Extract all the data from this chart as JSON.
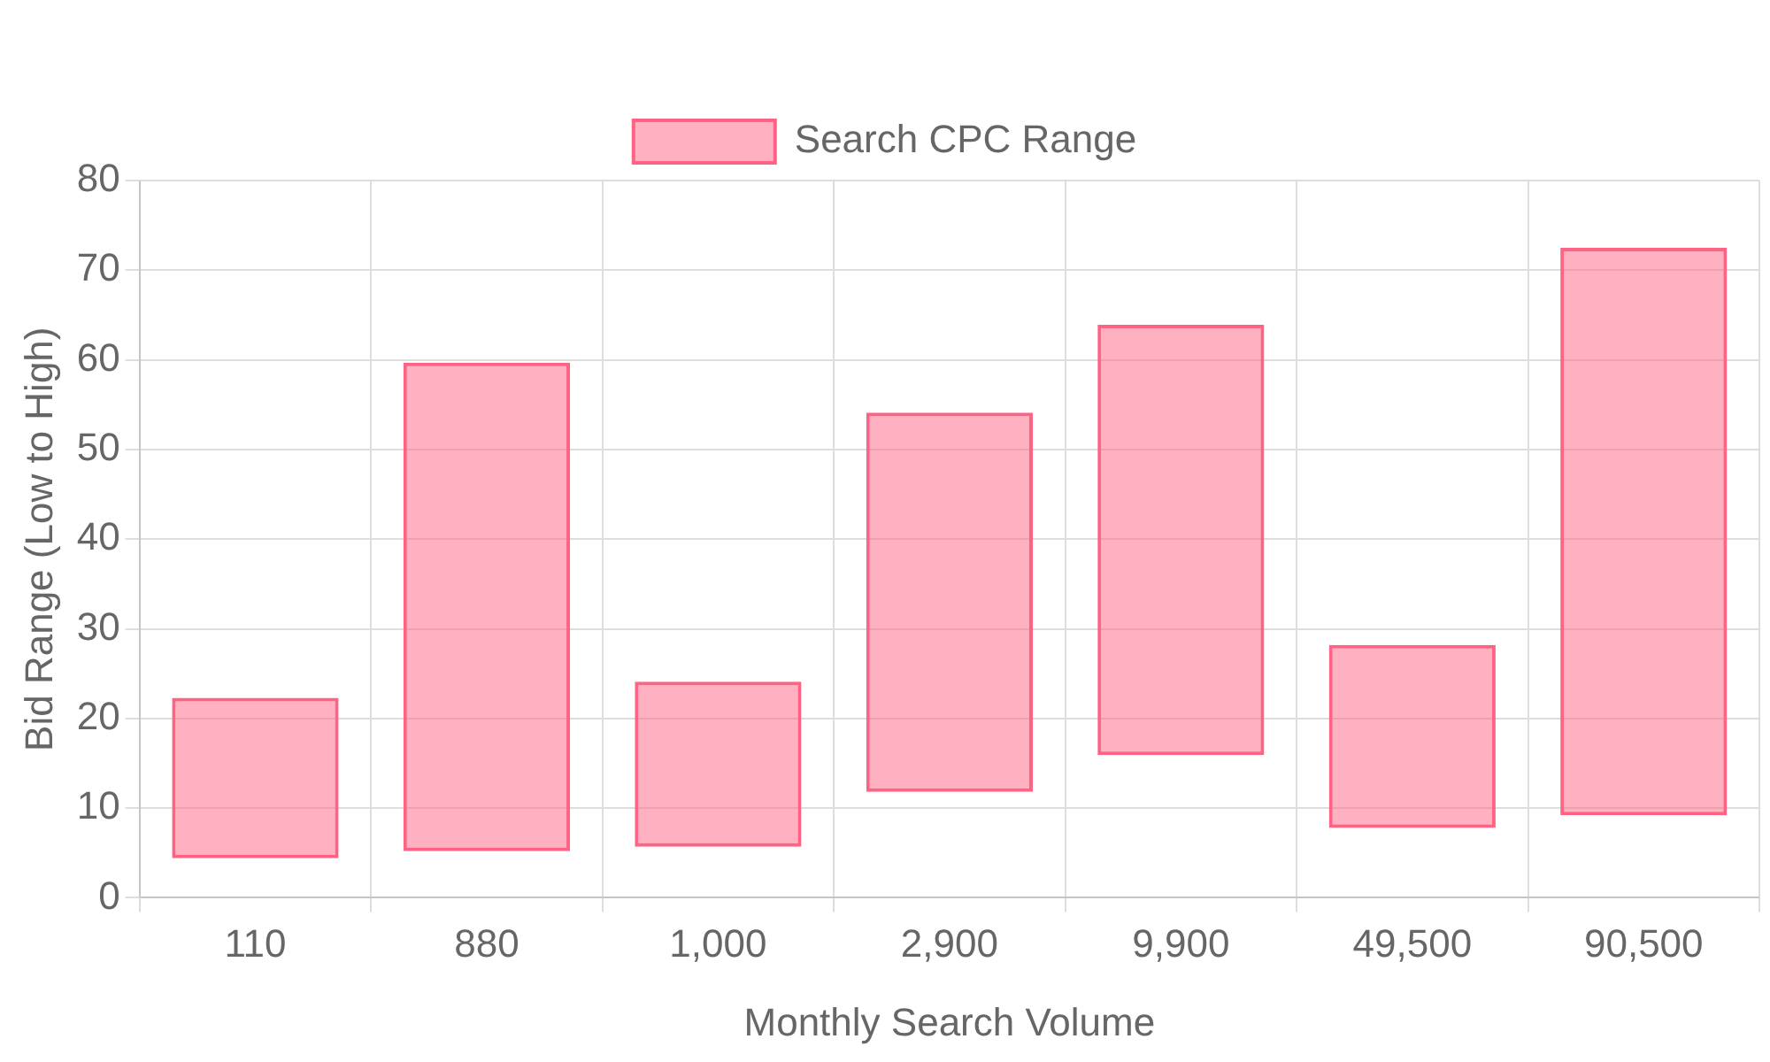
{
  "chart_data": {
    "type": "bar",
    "xlabel": "Monthly Search Volume",
    "ylabel": "Bid Range (Low to High)",
    "categories": [
      "110",
      "880",
      "1,000",
      "2,900",
      "9,900",
      "49,500",
      "90,500"
    ],
    "series": [
      {
        "name": "Search CPC Range",
        "color": "#ff6384",
        "values": [
          17.9,
          54.5,
          18.4,
          42.3,
          48,
          20.4,
          63.3
        ],
        "base": [
          4.4,
          5.2,
          5.7,
          11.8,
          15.9,
          7.8,
          9.2
        ]
      }
    ],
    "ylim": [
      0,
      80
    ],
    "yticks": [
      0,
      10,
      20,
      30,
      40,
      50,
      60,
      70,
      80
    ],
    "grid": true,
    "legend": "top"
  }
}
